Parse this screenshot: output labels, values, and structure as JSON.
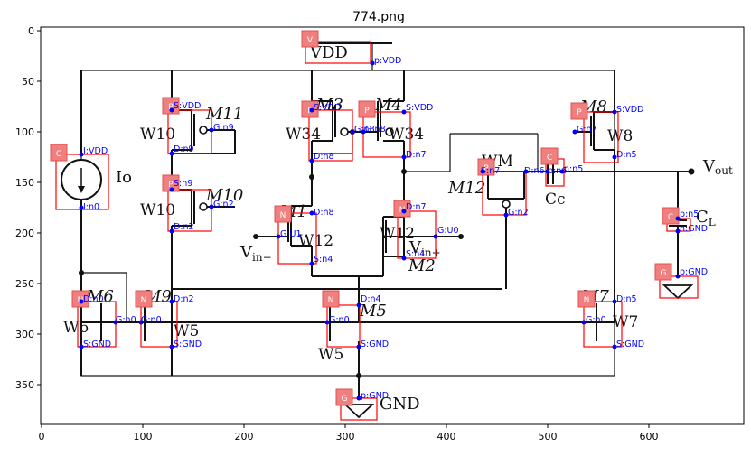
{
  "figure": {
    "title": "774.png",
    "x_ticks": [
      "0",
      "100",
      "200",
      "300",
      "400",
      "500",
      "600"
    ],
    "y_ticks": [
      "0",
      "50",
      "100",
      "150",
      "200",
      "250",
      "300",
      "350"
    ]
  },
  "colors": {
    "box": "#ff0000",
    "badge": "#f08080",
    "annotation": "#0000ff",
    "wire": "#111111"
  },
  "circuit_labels": {
    "vdd": "VDD",
    "gnd": "GND",
    "io": "Io",
    "m11": "M11",
    "m10": "M10",
    "m3": "M3",
    "m4": "M4",
    "m1": "M1",
    "m2": "M2",
    "m8": "M8",
    "m12": "M12",
    "m6": "M6",
    "m9": "M9",
    "m5": "M5",
    "m7": "M7",
    "w10a": "W10",
    "w10b": "W10",
    "w34a": "W34",
    "w34b": "W34",
    "w8": "W8",
    "w12a": "W12",
    "w12b": "W12",
    "wm": "WM",
    "cc": "Cc",
    "cl": "C",
    "cl_sub": "L",
    "vout": "V",
    "vout_sub": "out",
    "vinm": "V",
    "vinm_sub": "in−",
    "vinp": "V",
    "vinp_sub": "in+",
    "w6": "W6",
    "w5a": "W5",
    "w5b": "W5",
    "w7": "W7"
  },
  "badges": [
    "V",
    "C",
    "P",
    "P",
    "P",
    "P",
    "N",
    "N",
    "P",
    "P",
    "C",
    "C",
    "N",
    "N",
    "N",
    "N",
    "G",
    "G"
  ],
  "pins": [
    "p:VDD",
    "I:VDD",
    "I:n0",
    "S:VDD",
    "G:n9",
    "D:n9",
    "S:n9",
    "G:n2",
    "D:n2",
    "S:VDD",
    "G:n8",
    "D:n8",
    "S:VDD",
    "G:n8",
    "D:n7",
    "S:VDD",
    "G:n7",
    "D:n5",
    "S:n7",
    "D:n6",
    "G:n2",
    "p:n6",
    "n:n5",
    "p:n5",
    "n:GND",
    "D:n8",
    "G:U1",
    "S:n4",
    "D:n7",
    "G:U0",
    "S:n4",
    "D:n0",
    "G:n0",
    "S:GND",
    "D:n2",
    "G:n0",
    "S:GND",
    "D:n4",
    "G:n0",
    "S:GND",
    "D:n5",
    "G:n0",
    "S:GND",
    "p:GND",
    "p:GND"
  ]
}
